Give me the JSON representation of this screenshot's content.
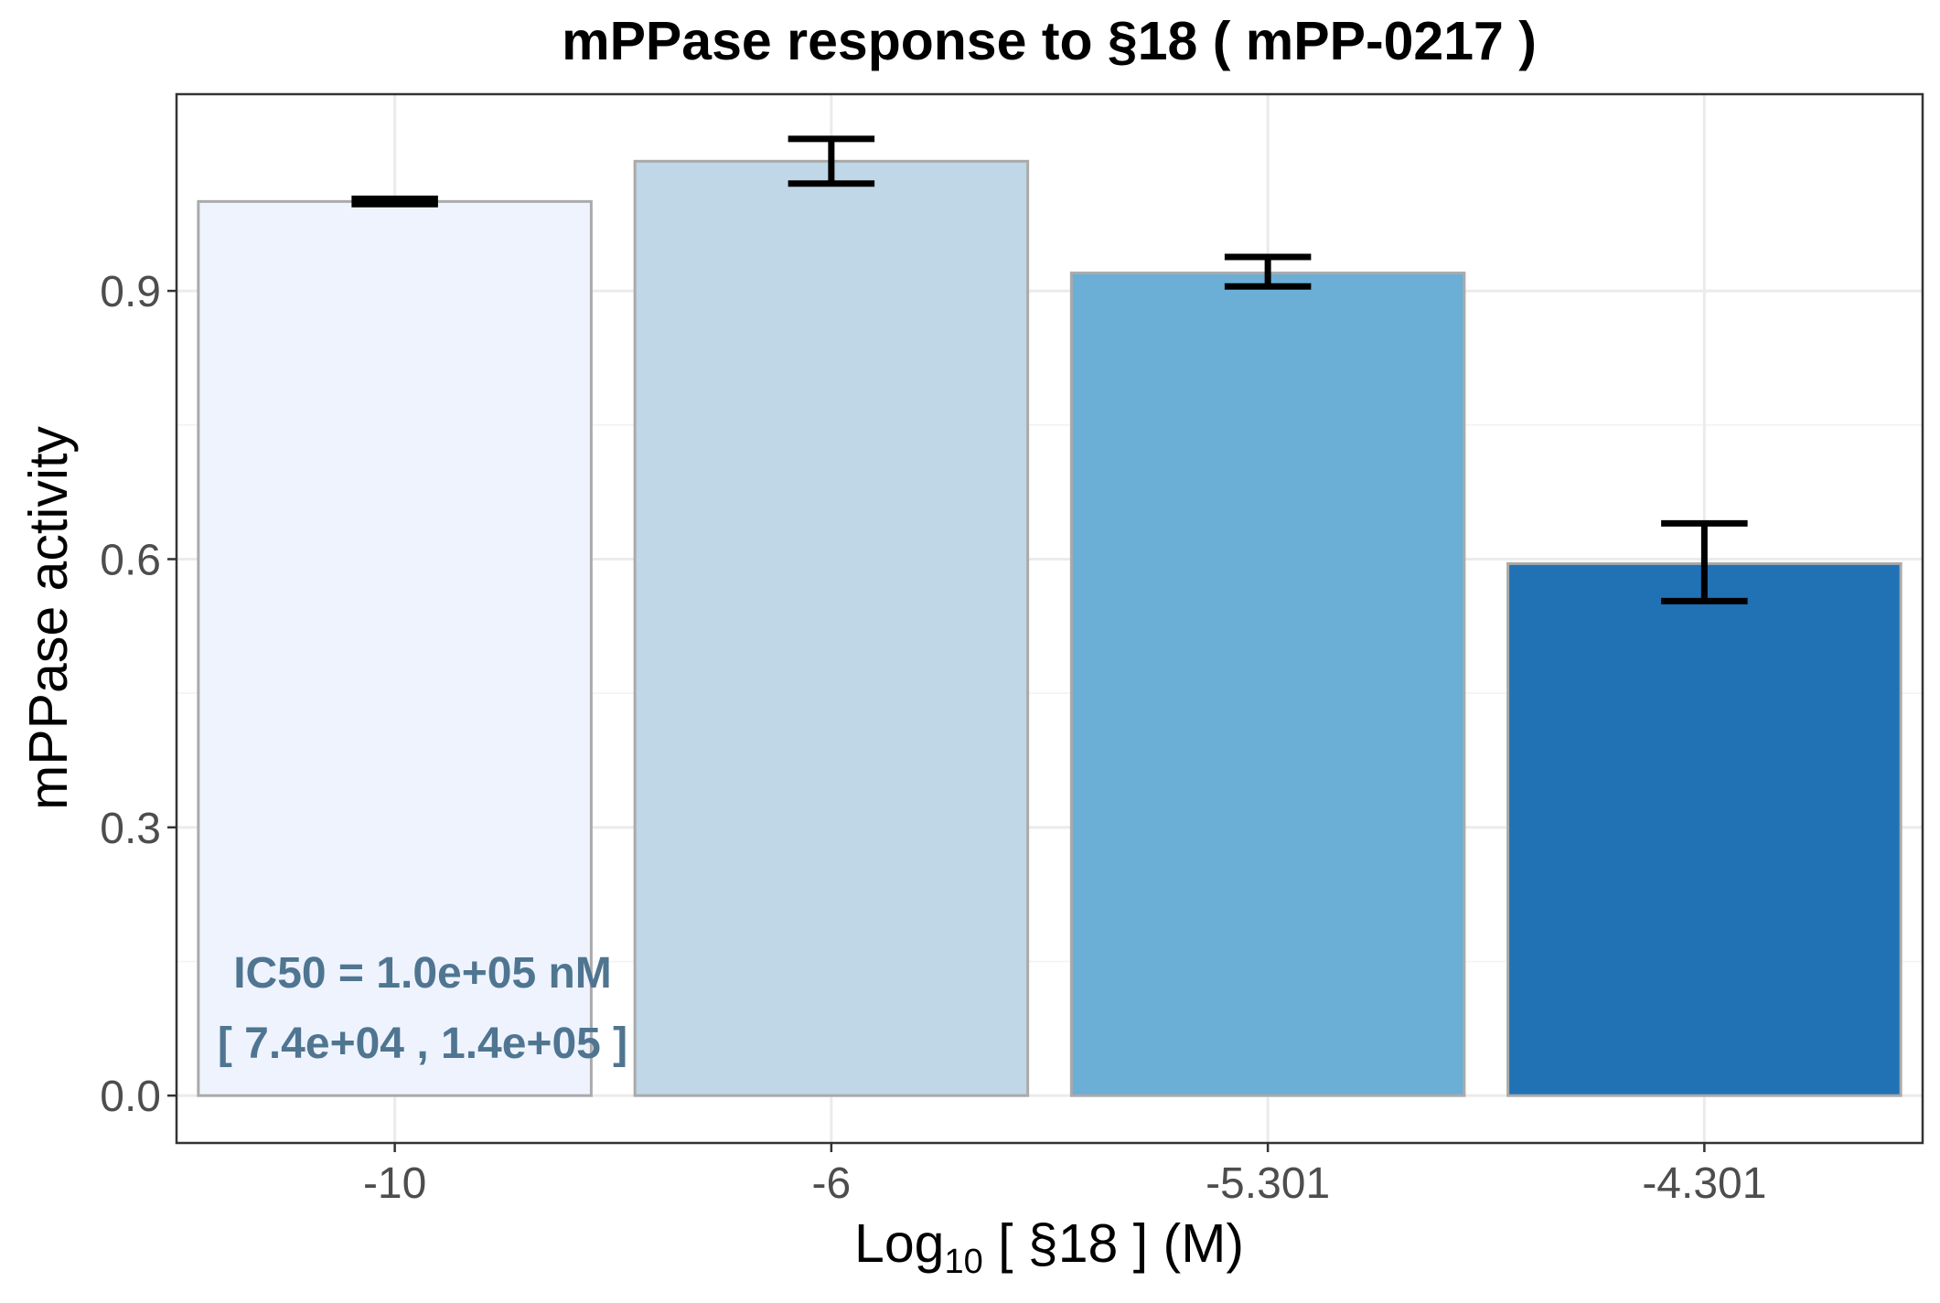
{
  "chart_data": {
    "type": "bar",
    "title": "mPPase response to §18 ( mPP-0217 )",
    "xlabel": {
      "prefix": "Log",
      "subscript": "10",
      "suffix": "[ §18 ] (M)"
    },
    "ylabel": "mPPase activity",
    "categories": [
      "-10",
      "-6",
      "-5.301",
      "-4.301"
    ],
    "values": [
      1.0,
      1.045,
      0.92,
      0.595
    ],
    "errors": [
      {
        "low": 0.997,
        "high": 1.003
      },
      {
        "low": 1.02,
        "high": 1.07
      },
      {
        "low": 0.905,
        "high": 0.938
      },
      {
        "low": 0.553,
        "high": 0.64
      }
    ],
    "colors": [
      "#eef3fe",
      "#bfd7e7",
      "#6baed6",
      "#2171b5"
    ],
    "bar_outline": "#aaaaaa",
    "ylim": [
      -0.053,
      1.12
    ],
    "yticks": [
      0.0,
      0.3,
      0.6,
      0.9
    ],
    "ytick_labels": [
      "0.0",
      "0.3",
      "0.6",
      "0.9"
    ],
    "grid": true,
    "annotation": {
      "line1": "IC50 = 1.0e+05 nM",
      "line2": "[ 7.4e+04 , 1.4e+05 ]",
      "color": "#4f7591"
    }
  }
}
